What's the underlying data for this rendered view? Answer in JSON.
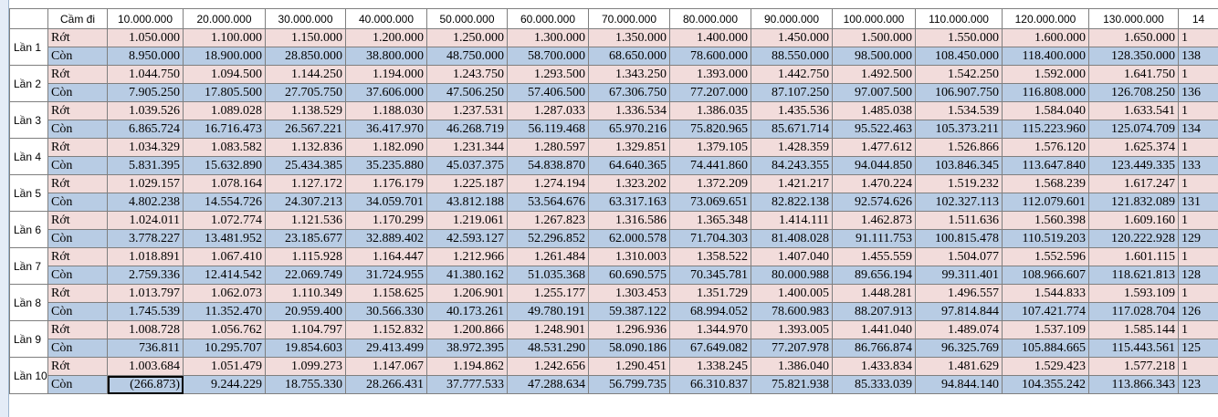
{
  "header": {
    "corner": "Cầm đi",
    "columns": [
      "10.000.000",
      "20.000.000",
      "30.000.000",
      "40.000.000",
      "50.000.000",
      "60.000.000",
      "70.000.000",
      "80.000.000",
      "90.000.000",
      "100.000.000",
      "110.000.000",
      "120.000.000",
      "130.000.000",
      "14"
    ]
  },
  "rows": [
    {
      "label": "Lần 1",
      "lines": [
        {
          "name": "Rớt",
          "cells": [
            "1.050.000",
            "1.100.000",
            "1.150.000",
            "1.200.000",
            "1.250.000",
            "1.300.000",
            "1.350.000",
            "1.400.000",
            "1.450.000",
            "1.500.000",
            "1.550.000",
            "1.600.000",
            "1.650.000",
            "1"
          ]
        },
        {
          "name": "Còn",
          "cells": [
            "8.950.000",
            "18.900.000",
            "28.850.000",
            "38.800.000",
            "48.750.000",
            "58.700.000",
            "68.650.000",
            "78.600.000",
            "88.550.000",
            "98.500.000",
            "108.450.000",
            "118.400.000",
            "128.350.000",
            "138"
          ]
        }
      ]
    },
    {
      "label": "Lần 2",
      "lines": [
        {
          "name": "Rớt",
          "cells": [
            "1.044.750",
            "1.094.500",
            "1.144.250",
            "1.194.000",
            "1.243.750",
            "1.293.500",
            "1.343.250",
            "1.393.000",
            "1.442.750",
            "1.492.500",
            "1.542.250",
            "1.592.000",
            "1.641.750",
            "1"
          ]
        },
        {
          "name": "Còn",
          "cells": [
            "7.905.250",
            "17.805.500",
            "27.705.750",
            "37.606.000",
            "47.506.250",
            "57.406.500",
            "67.306.750",
            "77.207.000",
            "87.107.250",
            "97.007.500",
            "106.907.750",
            "116.808.000",
            "126.708.250",
            "136"
          ]
        }
      ]
    },
    {
      "label": "Lần 3",
      "lines": [
        {
          "name": "Rớt",
          "cells": [
            "1.039.526",
            "1.089.028",
            "1.138.529",
            "1.188.030",
            "1.237.531",
            "1.287.033",
            "1.336.534",
            "1.386.035",
            "1.435.536",
            "1.485.038",
            "1.534.539",
            "1.584.040",
            "1.633.541",
            "1"
          ]
        },
        {
          "name": "Còn",
          "cells": [
            "6.865.724",
            "16.716.473",
            "26.567.221",
            "36.417.970",
            "46.268.719",
            "56.119.468",
            "65.970.216",
            "75.820.965",
            "85.671.714",
            "95.522.463",
            "105.373.211",
            "115.223.960",
            "125.074.709",
            "134"
          ]
        }
      ]
    },
    {
      "label": "Lần 4",
      "lines": [
        {
          "name": "Rớt",
          "cells": [
            "1.034.329",
            "1.083.582",
            "1.132.836",
            "1.182.090",
            "1.231.344",
            "1.280.597",
            "1.329.851",
            "1.379.105",
            "1.428.359",
            "1.477.612",
            "1.526.866",
            "1.576.120",
            "1.625.374",
            "1"
          ]
        },
        {
          "name": "Còn",
          "cells": [
            "5.831.395",
            "15.632.890",
            "25.434.385",
            "35.235.880",
            "45.037.375",
            "54.838.870",
            "64.640.365",
            "74.441.860",
            "84.243.355",
            "94.044.850",
            "103.846.345",
            "113.647.840",
            "123.449.335",
            "133"
          ]
        }
      ]
    },
    {
      "label": "Lần 5",
      "lines": [
        {
          "name": "Rớt",
          "cells": [
            "1.029.157",
            "1.078.164",
            "1.127.172",
            "1.176.179",
            "1.225.187",
            "1.274.194",
            "1.323.202",
            "1.372.209",
            "1.421.217",
            "1.470.224",
            "1.519.232",
            "1.568.239",
            "1.617.247",
            "1"
          ]
        },
        {
          "name": "Còn",
          "cells": [
            "4.802.238",
            "14.554.726",
            "24.307.213",
            "34.059.701",
            "43.812.188",
            "53.564.676",
            "63.317.163",
            "73.069.651",
            "82.822.138",
            "92.574.626",
            "102.327.113",
            "112.079.601",
            "121.832.089",
            "131"
          ]
        }
      ]
    },
    {
      "label": "Lần 6",
      "lines": [
        {
          "name": "Rớt",
          "cells": [
            "1.024.011",
            "1.072.774",
            "1.121.536",
            "1.170.299",
            "1.219.061",
            "1.267.823",
            "1.316.586",
            "1.365.348",
            "1.414.111",
            "1.462.873",
            "1.511.636",
            "1.560.398",
            "1.609.160",
            "1"
          ]
        },
        {
          "name": "Còn",
          "cells": [
            "3.778.227",
            "13.481.952",
            "23.185.677",
            "32.889.402",
            "42.593.127",
            "52.296.852",
            "62.000.578",
            "71.704.303",
            "81.408.028",
            "91.111.753",
            "100.815.478",
            "110.519.203",
            "120.222.928",
            "129"
          ]
        }
      ]
    },
    {
      "label": "Lần 7",
      "lines": [
        {
          "name": "Rớt",
          "cells": [
            "1.018.891",
            "1.067.410",
            "1.115.928",
            "1.164.447",
            "1.212.966",
            "1.261.484",
            "1.310.003",
            "1.358.522",
            "1.407.040",
            "1.455.559",
            "1.504.077",
            "1.552.596",
            "1.601.115",
            "1"
          ]
        },
        {
          "name": "Còn",
          "cells": [
            "2.759.336",
            "12.414.542",
            "22.069.749",
            "31.724.955",
            "41.380.162",
            "51.035.368",
            "60.690.575",
            "70.345.781",
            "80.000.988",
            "89.656.194",
            "99.311.401",
            "108.966.607",
            "118.621.813",
            "128"
          ]
        }
      ]
    },
    {
      "label": "Lần 8",
      "lines": [
        {
          "name": "Rớt",
          "cells": [
            "1.013.797",
            "1.062.073",
            "1.110.349",
            "1.158.625",
            "1.206.901",
            "1.255.177",
            "1.303.453",
            "1.351.729",
            "1.400.005",
            "1.448.281",
            "1.496.557",
            "1.544.833",
            "1.593.109",
            "1"
          ]
        },
        {
          "name": "Còn",
          "cells": [
            "1.745.539",
            "11.352.470",
            "20.959.400",
            "30.566.330",
            "40.173.261",
            "49.780.191",
            "59.387.122",
            "68.994.052",
            "78.600.983",
            "88.207.913",
            "97.814.844",
            "107.421.774",
            "117.028.704",
            "126"
          ]
        }
      ]
    },
    {
      "label": "Lần 9",
      "lines": [
        {
          "name": "Rớt",
          "cells": [
            "1.008.728",
            "1.056.762",
            "1.104.797",
            "1.152.832",
            "1.200.866",
            "1.248.901",
            "1.296.936",
            "1.344.970",
            "1.393.005",
            "1.441.040",
            "1.489.074",
            "1.537.109",
            "1.585.144",
            "1"
          ]
        },
        {
          "name": "Còn",
          "cells": [
            "736.811",
            "10.295.707",
            "19.854.603",
            "29.413.499",
            "38.972.395",
            "48.531.290",
            "58.090.186",
            "67.649.082",
            "77.207.978",
            "86.766.874",
            "96.325.769",
            "105.884.665",
            "115.443.561",
            "125"
          ]
        }
      ]
    },
    {
      "label": "Lần 10",
      "lines": [
        {
          "name": "Rớt",
          "cells": [
            "1.003.684",
            "1.051.479",
            "1.099.273",
            "1.147.067",
            "1.194.862",
            "1.242.656",
            "1.290.451",
            "1.338.245",
            "1.386.040",
            "1.433.834",
            "1.481.629",
            "1.529.423",
            "1.577.218",
            "1"
          ]
        },
        {
          "name": "Còn",
          "cells": [
            "(266.873)",
            "9.244.229",
            "18.755.330",
            "28.266.431",
            "37.777.533",
            "47.288.634",
            "56.799.735",
            "66.310.837",
            "75.821.938",
            "85.333.039",
            "94.844.140",
            "104.355.242",
            "113.866.343",
            "123"
          ]
        }
      ]
    }
  ]
}
